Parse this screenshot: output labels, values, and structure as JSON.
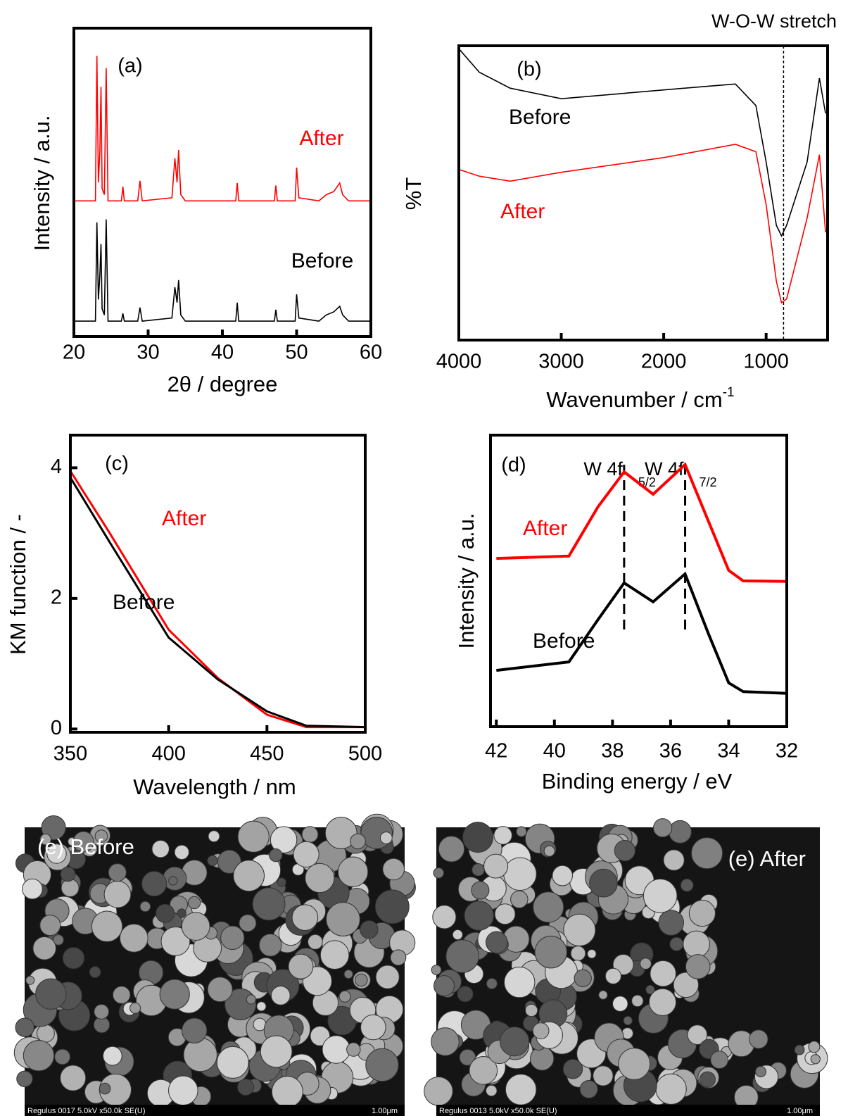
{
  "chart_data": [
    {
      "type": "line",
      "label": "(a)",
      "xlabel": "2θ / degree",
      "ylabel": "Intensity / a.u.",
      "xlim": [
        20,
        60
      ],
      "xticks": [
        20,
        30,
        40,
        50,
        60
      ],
      "ylim": [
        0,
        100
      ],
      "x": [
        20,
        22.9,
        23.1,
        23.3,
        23.5,
        23.65,
        23.8,
        24.1,
        24.35,
        24.6,
        26.4,
        26.6,
        26.8,
        28.6,
        28.9,
        29.2,
        33.2,
        33.6,
        33.9,
        34.1,
        34.4,
        35,
        41.8,
        42,
        42.2,
        47,
        47.2,
        47.4,
        49.8,
        50,
        50.3,
        53,
        54,
        55,
        55.8,
        56.2,
        57,
        60
      ],
      "series": [
        {
          "name": "After",
          "color": "#ff0000",
          "values": [
            44,
            44,
            91,
            50,
            60,
            81,
            48,
            46,
            87,
            44,
            44,
            48.6,
            44,
            44,
            50.5,
            44,
            45,
            57.8,
            50,
            60.5,
            46,
            44,
            44,
            49.8,
            44,
            44,
            49,
            44,
            44,
            54.8,
            45,
            44,
            46,
            47,
            49.8,
            46,
            44,
            44
          ]
        },
        {
          "name": "Before",
          "color": "#000000",
          "values": [
            5,
            5,
            37,
            12,
            20,
            30,
            9,
            7,
            38,
            5,
            5,
            7.5,
            5,
            5,
            9.4,
            5,
            6,
            16,
            11,
            18.3,
            7,
            5,
            5,
            11,
            5,
            5,
            8.7,
            5,
            5,
            13.7,
            6,
            5,
            7,
            8,
            9.8,
            7,
            5,
            5
          ]
        }
      ]
    },
    {
      "type": "line",
      "label": "(b)",
      "xlabel": "Wavenumber / cm",
      "xlabel_sup": "-1",
      "ylabel": "%T",
      "xlim": [
        4000,
        400
      ],
      "xticks": [
        4000,
        3000,
        2000,
        1000
      ],
      "ylim": [
        0,
        100
      ],
      "annotations": [
        {
          "text": "W-O-W stretch",
          "x": 830
        }
      ],
      "x": [
        4000,
        3800,
        3500,
        3000,
        2000,
        1300,
        1100,
        1000,
        900,
        850,
        800,
        600,
        480,
        420
      ],
      "series": [
        {
          "name": "Before",
          "color": "#000000",
          "values": [
            99,
            91,
            85.6,
            82,
            85,
            87,
            79.7,
            60.5,
            39,
            35.4,
            39,
            60.5,
            89,
            77
          ]
        },
        {
          "name": "After",
          "color": "#ff0000",
          "values": [
            58,
            55.7,
            54,
            57,
            62,
            66.5,
            64,
            46,
            20,
            12.7,
            14,
            41.4,
            63,
            36.6
          ]
        }
      ]
    },
    {
      "type": "line",
      "label": "(c)",
      "xlabel": "Wavelength / nm",
      "ylabel": "KM function / -",
      "xlim": [
        350,
        500
      ],
      "xticks": [
        350,
        400,
        450,
        500
      ],
      "ylim": [
        -0.05,
        4.5
      ],
      "yticks": [
        0,
        2,
        4
      ],
      "x": [
        350,
        370,
        400,
        425,
        450,
        470,
        500
      ],
      "series": [
        {
          "name": "After",
          "color": "#ff0000",
          "values": [
            3.95,
            3.0,
            1.52,
            0.78,
            0.22,
            0.03,
            0.03
          ]
        },
        {
          "name": "Before",
          "color": "#000000",
          "values": [
            3.85,
            2.86,
            1.4,
            0.76,
            0.27,
            0.05,
            0.03
          ]
        }
      ]
    },
    {
      "type": "line",
      "label": "(d)",
      "xlabel": "Binding energy / eV",
      "ylabel": "Intensity / a.u.",
      "xlim": [
        42.2,
        32
      ],
      "xticks": [
        42,
        40,
        38,
        36,
        34,
        32
      ],
      "ylim": [
        0,
        100
      ],
      "annotations": [
        {
          "text": "W 4f",
          "sub": "5/2",
          "x": 37.6
        },
        {
          "text": "W 4f",
          "sub": "7/2",
          "x": 35.5
        }
      ],
      "x": [
        42,
        39.5,
        38.5,
        37.6,
        36.6,
        35.5,
        34.7,
        34,
        33.5,
        32
      ],
      "series": [
        {
          "name": "After",
          "color": "#ff0000",
          "values": [
            57.7,
            58.5,
            75.4,
            87.4,
            79.7,
            89.9,
            70.5,
            53.6,
            50,
            49.8
          ]
        },
        {
          "name": "Before",
          "color": "#000000",
          "values": [
            19.3,
            22.2,
            36.7,
            49.3,
            42.8,
            52.4,
            31.9,
            15,
            12,
            11.4
          ]
        }
      ]
    }
  ],
  "sem_images": [
    {
      "label": "(e) Before",
      "caption": "Regulus 0017 5.0kV x50.0k SE(U)",
      "scale": "1.00μm"
    },
    {
      "label": "(e) After",
      "caption": "Regulus 0013 5.0kV x50.0k SE(U)",
      "scale": "1.00μm"
    }
  ]
}
